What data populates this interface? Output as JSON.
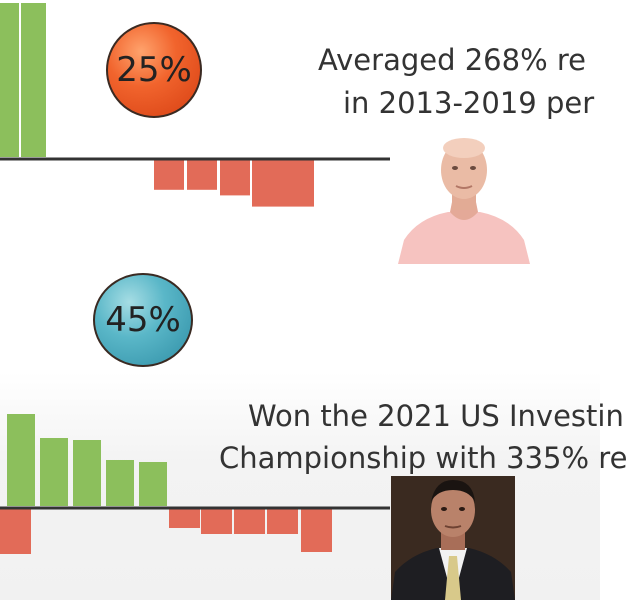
{
  "panels": [
    {
      "id": "top",
      "badge": {
        "text": "25%",
        "color": "#f1642d"
      },
      "caption": [
        "Averaged 268% re",
        "in 2013-2019 per"
      ],
      "chart_data": {
        "type": "bar",
        "positive_color": "#8cbf5c",
        "negative_color": "#e26b58",
        "baseline": 0,
        "values": [
          110,
          110,
          -22,
          -22,
          -26,
          -34,
          -34
        ]
      },
      "photo": {
        "name": "trader-portrait-bald-man",
        "shirt": "#f6c3c0",
        "skin": "#e9b9a3"
      }
    },
    {
      "id": "bottom",
      "badge": {
        "text": "45%",
        "color": "#5ab7c8"
      },
      "caption": [
        "Won the 2021 US Investin",
        "Championship with 335% re"
      ],
      "chart_data": {
        "type": "bar",
        "positive_color": "#8cbf5c",
        "negative_color": "#e26b58",
        "baseline": 0,
        "values": [
          92,
          68,
          66,
          46,
          44,
          -20,
          -26,
          -26,
          -26,
          -44,
          -46
        ]
      },
      "photo": {
        "name": "trader-portrait-man-in-suit",
        "suit": "#1e1e22",
        "skin": "#b78068"
      }
    }
  ]
}
